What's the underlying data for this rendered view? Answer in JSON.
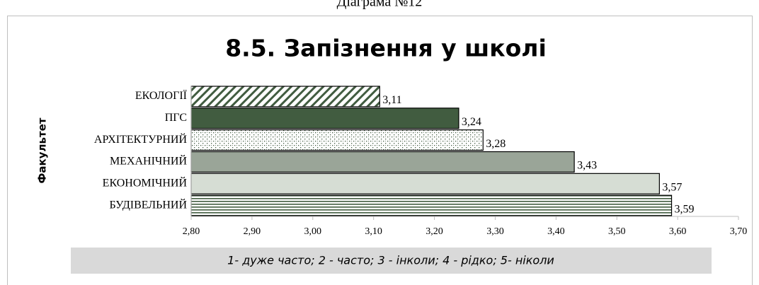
{
  "chart_data": {
    "type": "barh",
    "caption": "Діаграма №12",
    "title": "8.5. Запізнення у школі",
    "ylabel": "Факультет",
    "categories": [
      "ЕКОЛОГІЇ",
      "ПГС",
      "АРХІТЕКТУРНИЙ",
      "МЕХАНІЧНИЙ",
      "ЕКОНОМІЧНИЙ",
      "БУДІВЕЛЬНИЙ"
    ],
    "values": [
      3.11,
      3.24,
      3.28,
      3.43,
      3.57,
      3.59
    ],
    "value_labels": [
      "3,11",
      "3,24",
      "3,28",
      "3,43",
      "3,57",
      "3,59"
    ],
    "bar_styles": [
      {
        "pattern": "diagonal",
        "color": "#415c40"
      },
      {
        "pattern": "solid",
        "color": "#415c40"
      },
      {
        "pattern": "dots",
        "color": "#415c40"
      },
      {
        "pattern": "solid",
        "color": "#9aa598"
      },
      {
        "pattern": "solid",
        "color": "#d6ddd4"
      },
      {
        "pattern": "hlines",
        "color": "#415c40"
      }
    ],
    "xlim": [
      2.8,
      3.7
    ],
    "xticks": [
      {
        "value": 2.8,
        "label": "2,80"
      },
      {
        "value": 2.9,
        "label": "2,90"
      },
      {
        "value": 3.0,
        "label": "3,00"
      },
      {
        "value": 3.1,
        "label": "3,10"
      },
      {
        "value": 3.2,
        "label": "3,20"
      },
      {
        "value": 3.3,
        "label": "3,30"
      },
      {
        "value": 3.4,
        "label": "3,40"
      },
      {
        "value": 3.5,
        "label": "3,50"
      },
      {
        "value": 3.6,
        "label": "3,60"
      },
      {
        "value": 3.7,
        "label": "3,70"
      }
    ],
    "grid": false,
    "footnote": "1- дуже часто; 2 - часто; 3 - інколи; 4 - рідко; 5- ніколи"
  }
}
